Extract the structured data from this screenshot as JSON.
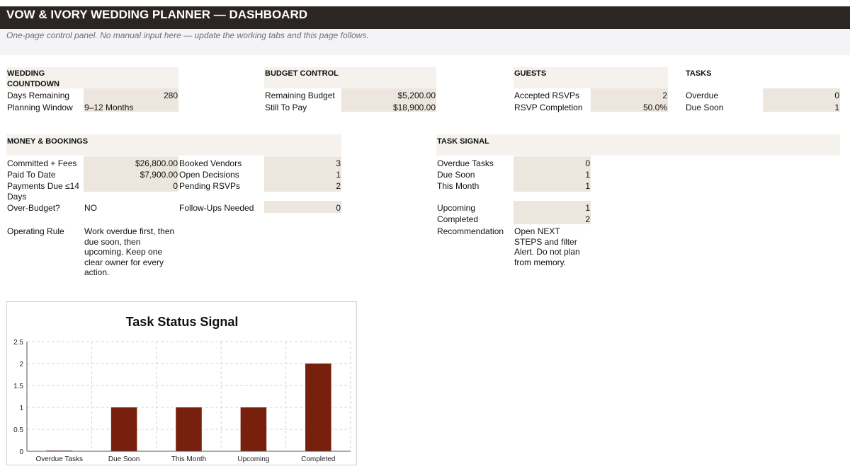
{
  "header": {
    "title": "VOW & IVORY WEDDING PLANNER — DASHBOARD",
    "subtitle": "One-page control panel. No manual input here — update the working tabs and this page follows."
  },
  "countdown": {
    "heading_line1": "WEDDING",
    "heading_line2": "COUNTDOWN",
    "days_remaining_label": "Days Remaining",
    "days_remaining_value": "280",
    "planning_window_label": "Planning Window",
    "planning_window_value": "9–12 Months"
  },
  "budget": {
    "heading": "BUDGET CONTROL",
    "remaining_label": "Remaining Budget",
    "remaining_value": "$5,200.00",
    "still_to_pay_label": "Still To Pay",
    "still_to_pay_value": "$18,900.00"
  },
  "guests": {
    "heading": "GUESTS",
    "accepted_label": "Accepted RSVPs",
    "accepted_value": "2",
    "completion_label": "RSVP Completion",
    "completion_value": "50.0%"
  },
  "tasks": {
    "heading": "TASKS",
    "overdue_label": "Overdue",
    "overdue_value": "0",
    "due_soon_label": "Due Soon",
    "due_soon_value": "1"
  },
  "money": {
    "heading": "MONEY & BOOKINGS",
    "committed_label": "Committed + Fees",
    "committed_value": "$26,800.00",
    "paid_label": "Paid To Date",
    "paid_value": "$7,900.00",
    "payments_due_label_line1": "Payments Due ≤14",
    "payments_due_label_line2": "Days",
    "payments_due_value": "0",
    "over_budget_label": "Over-Budget?",
    "over_budget_value": "NO",
    "booked_label": "Booked Vendors",
    "booked_value": "3",
    "open_decisions_label": "Open Decisions",
    "open_decisions_value": "1",
    "pending_rsvps_label": "Pending RSVPs",
    "pending_rsvps_value": "2",
    "followups_label": "Follow-Ups Needed",
    "followups_value": "0",
    "rule_label": "Operating Rule",
    "rule_text": "Work overdue first, then due soon, then upcoming. Keep one clear owner for every action."
  },
  "signal": {
    "heading": "TASK SIGNAL",
    "overdue_label": "Overdue Tasks",
    "overdue_value": "0",
    "due_soon_label": "Due Soon",
    "due_soon_value": "1",
    "this_month_label": "This Month",
    "this_month_value": "1",
    "upcoming_label": "Upcoming",
    "upcoming_value": "1",
    "completed_label": "Completed",
    "completed_value": "2",
    "recommendation_label": "Recommendation",
    "recommendation_text": "Open NEXT STEPS and filter Alert. Do not plan from memory."
  },
  "colors": {
    "title_bar": "#2b2523",
    "section_band": "#f5f2ed",
    "value_box": "#ece6de",
    "bar": "#76200d"
  },
  "chart_data": {
    "type": "bar",
    "title": "Task Status Signal",
    "categories": [
      "Overdue Tasks",
      "Due Soon",
      "This Month",
      "Upcoming",
      "Completed"
    ],
    "values": [
      0,
      1,
      1,
      1,
      2
    ],
    "yticks": [
      "0",
      "0.5",
      "1",
      "1.5",
      "2",
      "2.5"
    ],
    "ylim": [
      0,
      2.5
    ],
    "xlabel": "",
    "ylabel": "",
    "grid": true,
    "legend": "none"
  }
}
